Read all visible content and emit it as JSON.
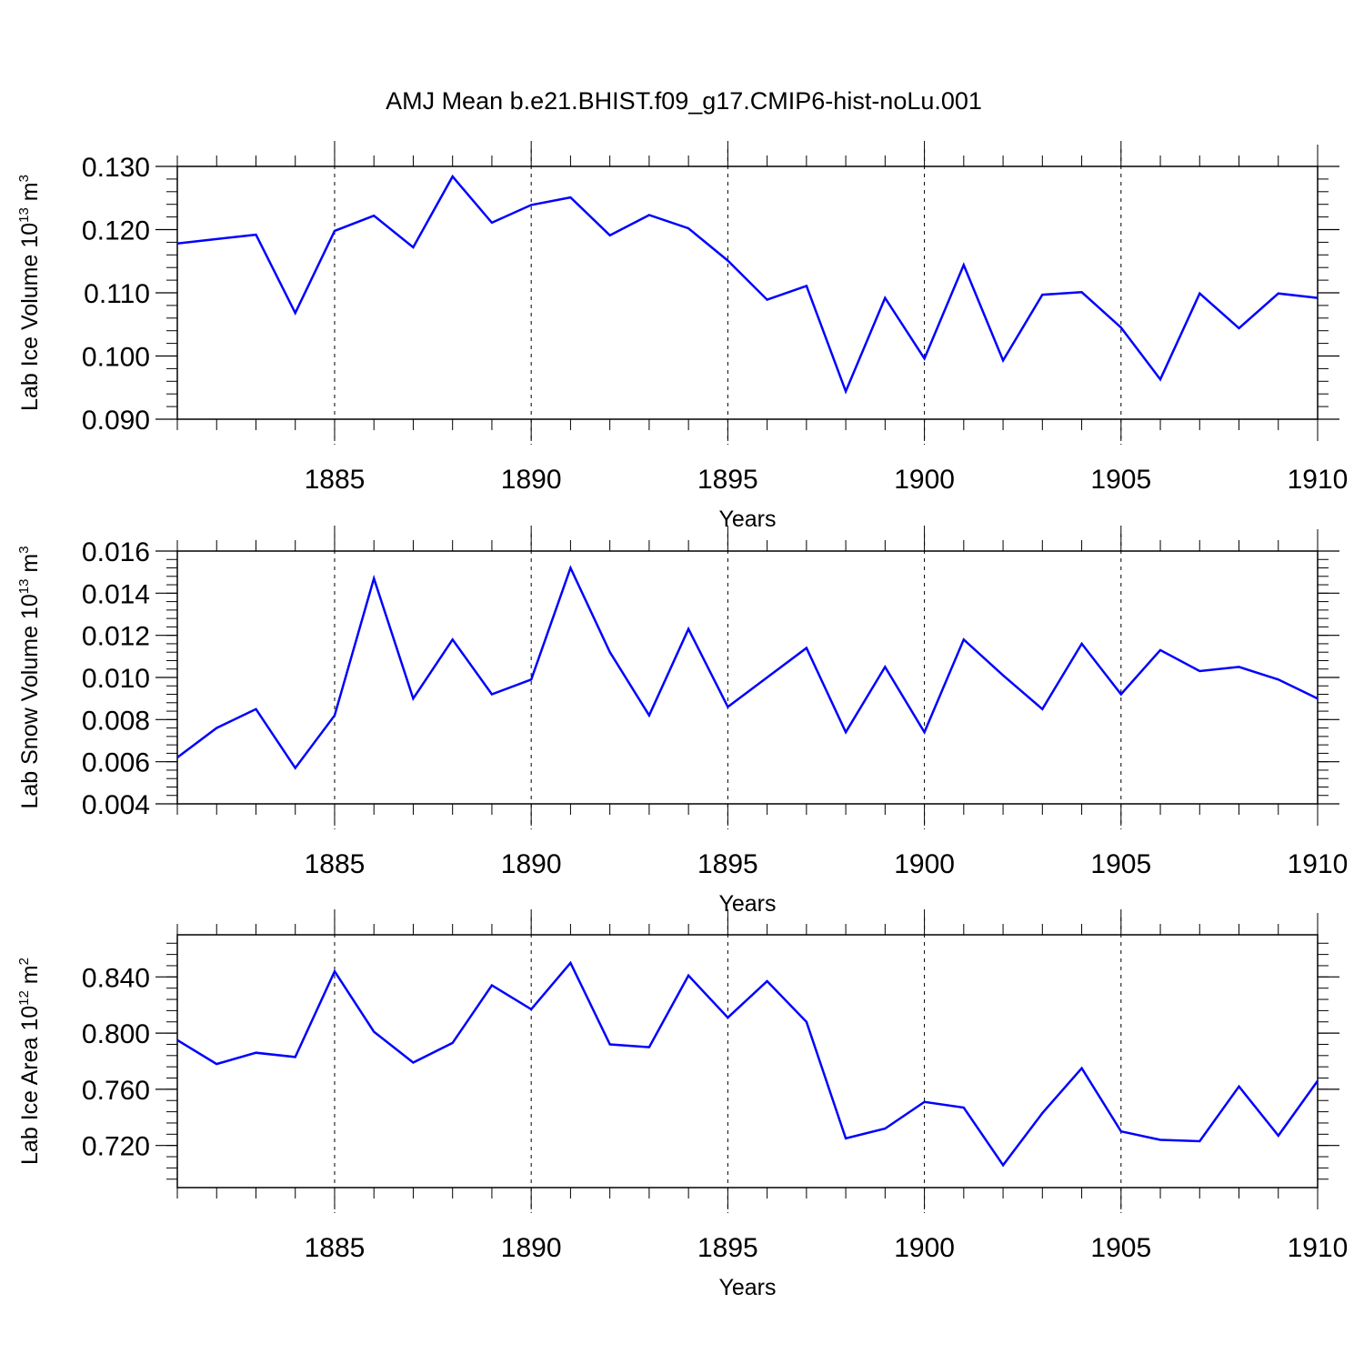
{
  "chart_data": {
    "title": "AMJ Mean b.e21.BHIST.f09_g17.CMIP6-hist-noLu.001",
    "panels": [
      {
        "type": "line",
        "ylabel_main": "Lab Ice Volume 10",
        "ylabel_exp": "13",
        "ylabel_unit": " m",
        "ylabel_unit_exp": "3",
        "xlabel": "Years",
        "xlim": [
          1881,
          1910
        ],
        "ylim": [
          0.09,
          0.13
        ],
        "yticks": [
          0.09,
          0.1,
          0.11,
          0.12,
          0.13
        ],
        "ytick_labels": [
          "0.090",
          "0.100",
          "0.110",
          "0.120",
          "0.130"
        ],
        "xticks": [
          1885,
          1890,
          1895,
          1900,
          1905,
          1910
        ],
        "xtick_labels": [
          "1885",
          "1890",
          "1895",
          "1900",
          "1905",
          "1910"
        ],
        "color": "#0000ff",
        "x": [
          1881,
          1882,
          1883,
          1884,
          1885,
          1886,
          1887,
          1888,
          1889,
          1890,
          1891,
          1892,
          1893,
          1894,
          1895,
          1896,
          1897,
          1898,
          1899,
          1900,
          1901,
          1902,
          1903,
          1904,
          1905,
          1906,
          1907,
          1908,
          1909,
          1910
        ],
        "values": [
          0.1178,
          0.1185,
          0.1192,
          0.1068,
          0.1198,
          0.1222,
          0.1172,
          0.1284,
          0.1211,
          0.1239,
          0.1251,
          0.1191,
          0.1223,
          0.1202,
          0.1151,
          0.1089,
          0.1111,
          0.0944,
          0.1092,
          0.0996,
          0.1144,
          0.0993,
          0.1097,
          0.1101,
          0.1045,
          0.0963,
          0.1099,
          0.1044,
          0.1099,
          0.1092
        ]
      },
      {
        "type": "line",
        "ylabel_main": "Lab Snow Volume 10",
        "ylabel_exp": "13",
        "ylabel_unit": " m",
        "ylabel_unit_exp": "3",
        "xlabel": "Years",
        "xlim": [
          1881,
          1910
        ],
        "ylim": [
          0.004,
          0.016
        ],
        "yticks": [
          0.004,
          0.006,
          0.008,
          0.01,
          0.012,
          0.014,
          0.016
        ],
        "ytick_labels": [
          "0.004",
          "0.006",
          "0.008",
          "0.010",
          "0.012",
          "0.014",
          "0.016"
        ],
        "xticks": [
          1885,
          1890,
          1895,
          1900,
          1905,
          1910
        ],
        "xtick_labels": [
          "1885",
          "1890",
          "1895",
          "1900",
          "1905",
          "1910"
        ],
        "color": "#0000ff",
        "x": [
          1881,
          1882,
          1883,
          1884,
          1885,
          1886,
          1887,
          1888,
          1889,
          1890,
          1891,
          1892,
          1893,
          1894,
          1895,
          1896,
          1897,
          1898,
          1899,
          1900,
          1901,
          1902,
          1903,
          1904,
          1905,
          1906,
          1907,
          1908,
          1909,
          1910
        ],
        "values": [
          0.0062,
          0.0076,
          0.0085,
          0.0057,
          0.0082,
          0.0147,
          0.009,
          0.0118,
          0.0092,
          0.0099,
          0.0152,
          0.0112,
          0.0082,
          0.0123,
          0.0086,
          0.01,
          0.0114,
          0.0074,
          0.0105,
          0.0074,
          0.0118,
          0.0101,
          0.0085,
          0.0116,
          0.0092,
          0.0113,
          0.0103,
          0.0105,
          0.0099,
          0.009
        ]
      },
      {
        "type": "line",
        "ylabel_main": "Lab Ice Area 10",
        "ylabel_exp": "12",
        "ylabel_unit": " m",
        "ylabel_unit_exp": "2",
        "xlabel": "Years",
        "xlim": [
          1881,
          1910
        ],
        "ylim": [
          0.69,
          0.87
        ],
        "yticks": [
          0.72,
          0.76,
          0.8,
          0.84
        ],
        "ytick_labels": [
          "0.720",
          "0.760",
          "0.800",
          "0.840"
        ],
        "xticks": [
          1885,
          1890,
          1895,
          1900,
          1905,
          1910
        ],
        "xtick_labels": [
          "1885",
          "1890",
          "1895",
          "1900",
          "1905",
          "1910"
        ],
        "color": "#0000ff",
        "x": [
          1881,
          1882,
          1883,
          1884,
          1885,
          1886,
          1887,
          1888,
          1889,
          1890,
          1891,
          1892,
          1893,
          1894,
          1895,
          1896,
          1897,
          1898,
          1899,
          1900,
          1901,
          1902,
          1903,
          1904,
          1905,
          1906,
          1907,
          1908,
          1909,
          1910
        ],
        "values": [
          0.795,
          0.778,
          0.786,
          0.783,
          0.844,
          0.801,
          0.779,
          0.793,
          0.834,
          0.817,
          0.85,
          0.792,
          0.79,
          0.841,
          0.811,
          0.837,
          0.808,
          0.725,
          0.732,
          0.751,
          0.747,
          0.706,
          0.743,
          0.775,
          0.73,
          0.724,
          0.723,
          0.762,
          0.727,
          0.766
        ]
      }
    ]
  }
}
